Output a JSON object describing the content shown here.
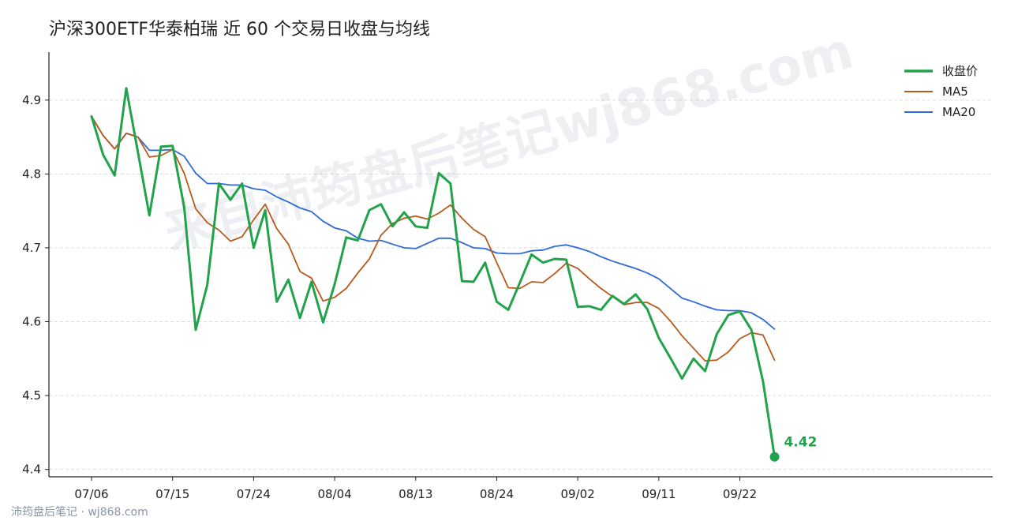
{
  "chart_data": {
    "type": "line",
    "title": "沪深300ETF华泰柏瑞 近 60 个交易日收盘与均线",
    "xlabel": "",
    "ylabel": "",
    "ylim": [
      4.39,
      4.965
    ],
    "yticks": [
      "4.4",
      "4.5",
      "4.6",
      "4.7",
      "4.8",
      "4.9"
    ],
    "xticks": [
      {
        "index": 0,
        "label": "07/06"
      },
      {
        "index": 7,
        "label": "07/15"
      },
      {
        "index": 14,
        "label": "07/24"
      },
      {
        "index": 21,
        "label": "08/04"
      },
      {
        "index": 28,
        "label": "08/13"
      },
      {
        "index": 35,
        "label": "08/24"
      },
      {
        "index": 42,
        "label": "09/02"
      },
      {
        "index": 49,
        "label": "09/11"
      },
      {
        "index": 56,
        "label": "09/22"
      }
    ],
    "legend_position": "top-right",
    "grid": "horizontal dashed",
    "series": [
      {
        "name": "收盘价",
        "color": "#22a24a",
        "values": [
          4.878,
          4.826,
          4.798,
          4.916,
          4.83,
          4.744,
          4.837,
          4.838,
          4.755,
          4.589,
          4.65,
          4.787,
          4.765,
          4.787,
          4.7,
          4.751,
          4.627,
          4.657,
          4.605,
          4.654,
          4.599,
          4.651,
          4.714,
          4.71,
          4.751,
          4.759,
          4.729,
          4.748,
          4.729,
          4.727,
          4.801,
          4.787,
          4.655,
          4.654,
          4.68,
          4.627,
          4.616,
          4.653,
          4.691,
          4.68,
          4.685,
          4.684,
          4.62,
          4.621,
          4.616,
          4.635,
          4.624,
          4.637,
          4.617,
          4.578,
          4.551,
          4.523,
          4.55,
          4.533,
          4.583,
          4.609,
          4.614,
          4.589,
          4.519,
          4.417
        ]
      },
      {
        "name": "MA5",
        "color": "#b85a1b",
        "values": [
          4.878,
          4.852,
          4.834,
          4.855,
          4.85,
          4.823,
          4.825,
          4.833,
          4.801,
          4.753,
          4.734,
          4.724,
          4.709,
          4.715,
          4.738,
          4.759,
          4.726,
          4.705,
          4.668,
          4.659,
          4.628,
          4.633,
          4.645,
          4.666,
          4.685,
          4.717,
          4.733,
          4.74,
          4.743,
          4.739,
          4.747,
          4.758,
          4.74,
          4.725,
          4.715,
          4.68,
          4.646,
          4.645,
          4.654,
          4.653,
          4.665,
          4.679,
          4.672,
          4.658,
          4.645,
          4.634,
          4.623,
          4.626,
          4.626,
          4.618,
          4.601,
          4.581,
          4.564,
          4.547,
          4.548,
          4.559,
          4.577,
          4.585,
          4.582,
          4.548
        ]
      },
      {
        "name": "MA20",
        "color": "#2f6ad6",
        "values": [
          4.878,
          4.852,
          4.834,
          4.855,
          4.85,
          4.832,
          4.832,
          4.833,
          4.824,
          4.801,
          4.787,
          4.787,
          4.785,
          4.785,
          4.78,
          4.778,
          4.769,
          4.762,
          4.754,
          4.749,
          4.736,
          4.727,
          4.723,
          4.713,
          4.709,
          4.71,
          4.705,
          4.7,
          4.699,
          4.706,
          4.713,
          4.713,
          4.707,
          4.7,
          4.699,
          4.693,
          4.692,
          4.692,
          4.696,
          4.697,
          4.702,
          4.704,
          4.7,
          4.695,
          4.688,
          4.682,
          4.677,
          4.672,
          4.666,
          4.658,
          4.645,
          4.632,
          4.627,
          4.621,
          4.616,
          4.615,
          4.615,
          4.612,
          4.603,
          4.59
        ]
      }
    ],
    "end_label": "4.42",
    "watermark": "来自沛筠盘后笔记wj868.com"
  },
  "footer": "沛筠盘后笔记 · wj868.com"
}
